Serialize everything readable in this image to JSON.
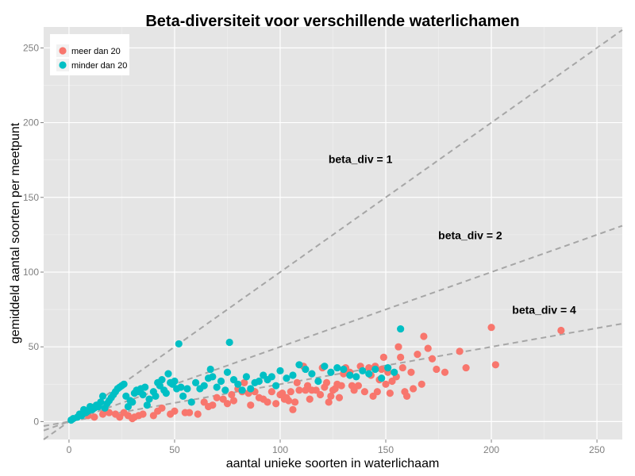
{
  "chart_data": {
    "type": "scatter",
    "title": "Beta-diversiteit voor verschillende waterlichamen",
    "xlabel": "aantal unieke soorten in waterlichaam",
    "ylabel": "gemiddeld aantal soorten per meetpunt",
    "xlim": [
      -12,
      262
    ],
    "ylim": [
      -12,
      264
    ],
    "xticks": [
      0,
      50,
      100,
      150,
      200,
      250
    ],
    "yticks": [
      0,
      50,
      100,
      150,
      200,
      250
    ],
    "grid": true,
    "legend_position": "top-left",
    "colors": {
      "panel": "#e5e5e5",
      "grid_major": "#ffffff",
      "grid_minor": "#f2f2f2",
      "reference_line": "#a6a6a6"
    },
    "reference_lines": [
      {
        "label": "beta_div = 1",
        "slope": 1,
        "label_x": 138,
        "label_y": 173
      },
      {
        "label": "beta_div = 2",
        "slope": 0.5,
        "label_x": 190,
        "label_y": 122
      },
      {
        "label": "beta_div = 4",
        "slope": 0.25,
        "label_x": 225,
        "label_y": 72
      }
    ],
    "series": [
      {
        "name": "meer dan 20",
        "color": "#f8766d",
        "points": [
          [
            9,
            4
          ],
          [
            12,
            3
          ],
          [
            16,
            5
          ],
          [
            19,
            6
          ],
          [
            22,
            5
          ],
          [
            24,
            3
          ],
          [
            26,
            6
          ],
          [
            28,
            4
          ],
          [
            30,
            2
          ],
          [
            31,
            3
          ],
          [
            33,
            4
          ],
          [
            35,
            5
          ],
          [
            40,
            4
          ],
          [
            42,
            7
          ],
          [
            44,
            9
          ],
          [
            48,
            5
          ],
          [
            50,
            7
          ],
          [
            55,
            6
          ],
          [
            57,
            6
          ],
          [
            61,
            5
          ],
          [
            64,
            13
          ],
          [
            66,
            10
          ],
          [
            68,
            11
          ],
          [
            70,
            16
          ],
          [
            73,
            15
          ],
          [
            75,
            12
          ],
          [
            77,
            18
          ],
          [
            78,
            14
          ],
          [
            80,
            22
          ],
          [
            82,
            20
          ],
          [
            83,
            26
          ],
          [
            85,
            19
          ],
          [
            86,
            11
          ],
          [
            88,
            20
          ],
          [
            90,
            16
          ],
          [
            92,
            15
          ],
          [
            94,
            13
          ],
          [
            96,
            20
          ],
          [
            98,
            12
          ],
          [
            100,
            18
          ],
          [
            101,
            19
          ],
          [
            102,
            15
          ],
          [
            103,
            16
          ],
          [
            104,
            14
          ],
          [
            105,
            20
          ],
          [
            106,
            8
          ],
          [
            107,
            13
          ],
          [
            108,
            26
          ],
          [
            109,
            21
          ],
          [
            111,
            37
          ],
          [
            112,
            21
          ],
          [
            113,
            24
          ],
          [
            114,
            15
          ],
          [
            115,
            21
          ],
          [
            117,
            21
          ],
          [
            119,
            18
          ],
          [
            120,
            36
          ],
          [
            121,
            23
          ],
          [
            122,
            26
          ],
          [
            123,
            13
          ],
          [
            124,
            17
          ],
          [
            125,
            21
          ],
          [
            126,
            22
          ],
          [
            127,
            25
          ],
          [
            128,
            16
          ],
          [
            129,
            24
          ],
          [
            130,
            32
          ],
          [
            131,
            36
          ],
          [
            133,
            33
          ],
          [
            134,
            24
          ],
          [
            135,
            21
          ],
          [
            137,
            24
          ],
          [
            138,
            37
          ],
          [
            140,
            20
          ],
          [
            142,
            36
          ],
          [
            143,
            31
          ],
          [
            144,
            17
          ],
          [
            145,
            37
          ],
          [
            146,
            20
          ],
          [
            147,
            28
          ],
          [
            148,
            35
          ],
          [
            149,
            43
          ],
          [
            150,
            25
          ],
          [
            151,
            33
          ],
          [
            152,
            19
          ],
          [
            153,
            27
          ],
          [
            155,
            30
          ],
          [
            156,
            50
          ],
          [
            157,
            43
          ],
          [
            158,
            36
          ],
          [
            159,
            20
          ],
          [
            160,
            17
          ],
          [
            162,
            33
          ],
          [
            163,
            22
          ],
          [
            165,
            45
          ],
          [
            167,
            25
          ],
          [
            168,
            57
          ],
          [
            170,
            49
          ],
          [
            172,
            42
          ],
          [
            174,
            35
          ],
          [
            178,
            33
          ],
          [
            185,
            47
          ],
          [
            188,
            36
          ],
          [
            200,
            63
          ],
          [
            202,
            38
          ],
          [
            233,
            61
          ]
        ]
      },
      {
        "name": "minder dan 20",
        "color": "#00bfc4",
        "points": [
          [
            1,
            1
          ],
          [
            2,
            2
          ],
          [
            4,
            3
          ],
          [
            5,
            5
          ],
          [
            6,
            4
          ],
          [
            7,
            8
          ],
          [
            8,
            6
          ],
          [
            9,
            7
          ],
          [
            10,
            10
          ],
          [
            11,
            8
          ],
          [
            12,
            9
          ],
          [
            13,
            11
          ],
          [
            14,
            10
          ],
          [
            15,
            13
          ],
          [
            16,
            17
          ],
          [
            17,
            9
          ],
          [
            18,
            12
          ],
          [
            19,
            14
          ],
          [
            20,
            16
          ],
          [
            21,
            18
          ],
          [
            22,
            20
          ],
          [
            23,
            22
          ],
          [
            24,
            23
          ],
          [
            25,
            24
          ],
          [
            26,
            25
          ],
          [
            27,
            17
          ],
          [
            28,
            10
          ],
          [
            29,
            14
          ],
          [
            30,
            13
          ],
          [
            31,
            19
          ],
          [
            32,
            21
          ],
          [
            33,
            20
          ],
          [
            34,
            22
          ],
          [
            35,
            18
          ],
          [
            36,
            23
          ],
          [
            37,
            11
          ],
          [
            38,
            15
          ],
          [
            40,
            20
          ],
          [
            41,
            17
          ],
          [
            42,
            26
          ],
          [
            43,
            24
          ],
          [
            44,
            28
          ],
          [
            45,
            21
          ],
          [
            46,
            19
          ],
          [
            47,
            32
          ],
          [
            48,
            26
          ],
          [
            49,
            25
          ],
          [
            50,
            27
          ],
          [
            51,
            22
          ],
          [
            52,
            52
          ],
          [
            53,
            23
          ],
          [
            54,
            17
          ],
          [
            56,
            22
          ],
          [
            58,
            13
          ],
          [
            60,
            26
          ],
          [
            62,
            22
          ],
          [
            64,
            24
          ],
          [
            66,
            29
          ],
          [
            67,
            35
          ],
          [
            68,
            30
          ],
          [
            70,
            23
          ],
          [
            72,
            27
          ],
          [
            74,
            21
          ],
          [
            75,
            33
          ],
          [
            76,
            53
          ],
          [
            78,
            28
          ],
          [
            80,
            25
          ],
          [
            82,
            21
          ],
          [
            84,
            30
          ],
          [
            86,
            22
          ],
          [
            88,
            26
          ],
          [
            90,
            27
          ],
          [
            92,
            31
          ],
          [
            94,
            28
          ],
          [
            96,
            30
          ],
          [
            98,
            24
          ],
          [
            100,
            34
          ],
          [
            103,
            29
          ],
          [
            106,
            31
          ],
          [
            109,
            38
          ],
          [
            112,
            35
          ],
          [
            115,
            32
          ],
          [
            118,
            27
          ],
          [
            121,
            37
          ],
          [
            124,
            33
          ],
          [
            127,
            36
          ],
          [
            130,
            35
          ],
          [
            133,
            31
          ],
          [
            136,
            30
          ],
          [
            139,
            34
          ],
          [
            142,
            32
          ],
          [
            145,
            35
          ],
          [
            148,
            29
          ],
          [
            151,
            36
          ],
          [
            154,
            33
          ],
          [
            157,
            62
          ]
        ]
      }
    ]
  }
}
